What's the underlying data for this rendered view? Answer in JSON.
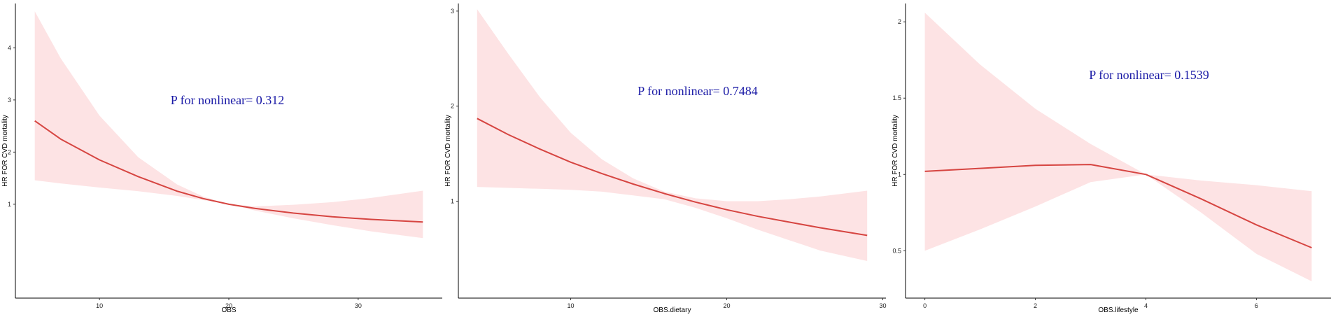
{
  "chart_data": [
    {
      "type": "line",
      "title": "",
      "xlabel": "OBS",
      "ylabel": "HR FOR CVD mortality",
      "annotation": "P for nonlinear= 0.312",
      "xlim": [
        3.5,
        36.5
      ],
      "ylim": [
        -0.8,
        4.85
      ],
      "xticks": [
        10,
        20,
        30
      ],
      "yticks": [
        1,
        2,
        3,
        4
      ],
      "grid": false,
      "colors": {
        "line": "#d64541",
        "band": "#fde3e4"
      },
      "series": [
        {
          "x": [
            5,
            7,
            10,
            13,
            16,
            18,
            20,
            22,
            25,
            28,
            31,
            35
          ],
          "y": [
            2.6,
            2.25,
            1.85,
            1.53,
            1.25,
            1.11,
            1.0,
            0.92,
            0.83,
            0.76,
            0.71,
            0.66
          ],
          "lower": [
            1.46,
            1.4,
            1.32,
            1.25,
            1.16,
            1.08,
            1.0,
            0.88,
            0.73,
            0.6,
            0.48,
            0.35
          ],
          "upper": [
            4.7,
            3.8,
            2.7,
            1.9,
            1.38,
            1.15,
            1.0,
            0.96,
            0.99,
            1.04,
            1.12,
            1.26
          ]
        }
      ]
    },
    {
      "type": "line",
      "title": "",
      "xlabel": "OBS.dietary",
      "ylabel": "HR FOR CVD mortality",
      "annotation": "P for nonlinear= 0.7484",
      "xlim": [
        2.8,
        30.2
      ],
      "ylim": [
        -0.02,
        3.08
      ],
      "xticks": [
        10,
        20,
        30
      ],
      "yticks": [
        1,
        2,
        3
      ],
      "grid": false,
      "colors": {
        "line": "#d64541",
        "band": "#fde3e4"
      },
      "series": [
        {
          "x": [
            4,
            6,
            8,
            10,
            12,
            14,
            16,
            18,
            20,
            22,
            24,
            26,
            29
          ],
          "y": [
            1.87,
            1.7,
            1.55,
            1.41,
            1.29,
            1.18,
            1.08,
            0.99,
            0.91,
            0.84,
            0.78,
            0.72,
            0.64
          ],
          "lower": [
            1.15,
            1.14,
            1.13,
            1.12,
            1.1,
            1.06,
            1.02,
            0.93,
            0.82,
            0.7,
            0.59,
            0.48,
            0.37
          ],
          "upper": [
            3.02,
            2.55,
            2.1,
            1.72,
            1.44,
            1.24,
            1.1,
            1.03,
            1.0,
            1.0,
            1.02,
            1.05,
            1.11
          ]
        }
      ]
    },
    {
      "type": "line",
      "title": "",
      "xlabel": "OBS.lifestyle",
      "ylabel": "HR FOR CVD mortality",
      "annotation": "P for nonlinear= 0.1539",
      "xlim": [
        -0.35,
        7.35
      ],
      "ylim": [
        0.19,
        2.12
      ],
      "xticks": [
        0,
        2,
        4,
        6
      ],
      "yticks": [
        0.5,
        1.0,
        1.5,
        2.0
      ],
      "grid": false,
      "colors": {
        "line": "#d64541",
        "band": "#fde3e4"
      },
      "series": [
        {
          "x": [
            0,
            1,
            2,
            3,
            4,
            5,
            6,
            7
          ],
          "y": [
            1.02,
            1.04,
            1.06,
            1.065,
            1.0,
            0.84,
            0.67,
            0.52
          ],
          "lower": [
            0.5,
            0.64,
            0.79,
            0.95,
            1.0,
            0.75,
            0.48,
            0.3
          ],
          "upper": [
            2.06,
            1.72,
            1.43,
            1.2,
            1.0,
            0.96,
            0.93,
            0.89
          ]
        }
      ]
    }
  ]
}
